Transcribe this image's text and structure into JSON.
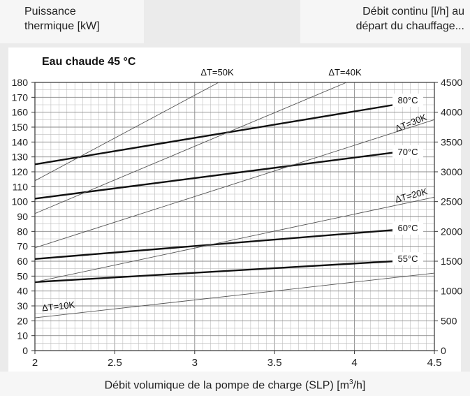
{
  "header": {
    "left_line1": "Puissance",
    "left_line2": "thermique [kW]",
    "right_line1": "Débit continu [l/h] au",
    "right_line2": "départ du chauffage..."
  },
  "x_axis_label": {
    "prefix": "Débit volumique de la pompe de charge (SLP) [m",
    "sup": "3",
    "suffix": "/h]"
  },
  "chart_data": {
    "type": "line",
    "title": "Eau chaude 45 °C",
    "xlim": [
      2,
      4.5
    ],
    "ylim": [
      0,
      180
    ],
    "y2lim": [
      0,
      4500
    ],
    "x_ticks": [
      "2",
      "2.5",
      "3",
      "3.5",
      "4",
      "4.5"
    ],
    "y_ticks": [
      "0",
      "10",
      "20",
      "30",
      "40",
      "50",
      "60",
      "70",
      "80",
      "90",
      "100",
      "110",
      "120",
      "130",
      "140",
      "150",
      "160",
      "170",
      "180"
    ],
    "y2_ticks": [
      "0",
      "500",
      "1000",
      "1500",
      "2000",
      "2500",
      "3000",
      "3500",
      "4000",
      "4500"
    ],
    "grid": true,
    "series": [
      {
        "name": "80°C",
        "kind": "temperature",
        "x": [
          2,
          4.25
        ],
        "y": [
          125,
          165
        ]
      },
      {
        "name": "70°C",
        "kind": "temperature",
        "x": [
          2,
          4.25
        ],
        "y": [
          102,
          133
        ]
      },
      {
        "name": "60°C",
        "kind": "temperature",
        "x": [
          2,
          4.25
        ],
        "y": [
          61.5,
          81
        ]
      },
      {
        "name": "55°C",
        "kind": "temperature",
        "x": [
          2,
          4.25
        ],
        "y": [
          46,
          60
        ]
      },
      {
        "name": "ΔT=50K",
        "kind": "delta",
        "x": [
          2,
          3.15
        ],
        "y": [
          114,
          180
        ]
      },
      {
        "name": "ΔT=40K",
        "kind": "delta",
        "x": [
          2,
          3.95
        ],
        "y": [
          92,
          180
        ]
      },
      {
        "name": "ΔT=30K",
        "kind": "delta",
        "x": [
          2,
          4.5
        ],
        "y": [
          69,
          155
        ]
      },
      {
        "name": "ΔT=20K",
        "kind": "delta",
        "x": [
          2,
          4.5
        ],
        "y": [
          46,
          103
        ]
      },
      {
        "name": "ΔT=10K",
        "kind": "delta",
        "x": [
          2,
          4.5
        ],
        "y": [
          22,
          52
        ]
      }
    ]
  }
}
